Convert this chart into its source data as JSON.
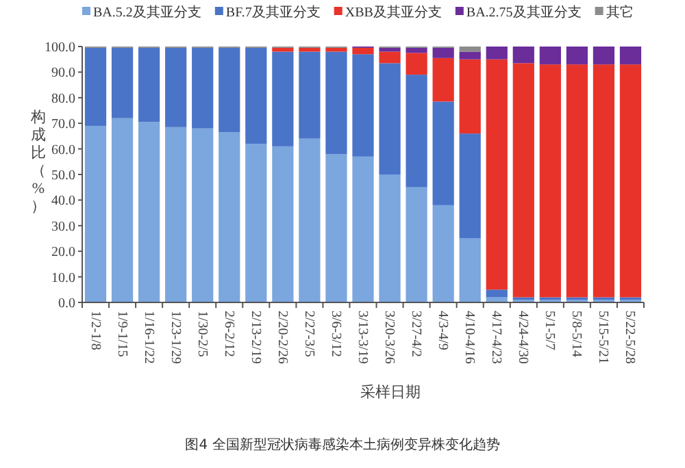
{
  "chart_data": {
    "type": "bar",
    "stacked": true,
    "legend": "top",
    "xlabel": "采样日期",
    "ylabel": "构成比（%）",
    "annotations": [
      "图4 全国新型冠状病毒感染本土病例变异株变化趋势"
    ],
    "ylim": [
      0,
      100
    ],
    "yticks": [
      {
        "value": 0,
        "label": "0.0"
      },
      {
        "value": 10,
        "label": "10.0"
      },
      {
        "value": 20,
        "label": "20.0"
      },
      {
        "value": 30,
        "label": "30.0"
      },
      {
        "value": 40,
        "label": "40.0"
      },
      {
        "value": 50,
        "label": "50.0"
      },
      {
        "value": 60,
        "label": "60.0"
      },
      {
        "value": 70,
        "label": "70.0"
      },
      {
        "value": 80,
        "label": "80.0"
      },
      {
        "value": 90,
        "label": "90.0"
      },
      {
        "value": 100,
        "label": "100.0"
      }
    ],
    "categories": [
      "1/2-1/8",
      "1/9-1/15",
      "1/16-1/22",
      "1/23-1/29",
      "1/30-2/5",
      "2/6-2/12",
      "2/13-2/19",
      "2/20-2/26",
      "2/27-3/5",
      "3/6-3/12",
      "3/13-3/19",
      "3/20-3/26",
      "3/27-4/2",
      "4/3-4/9",
      "4/10-4/16",
      "4/17-4/23",
      "4/24-4/30",
      "5/1-5/7",
      "5/8-5/14",
      "5/15-5/21",
      "5/22-5/28"
    ],
    "series": [
      {
        "name": "BA.5.2及其亚分支",
        "color": "#7ba6de",
        "values": [
          69,
          72,
          70.5,
          68.5,
          68,
          66.5,
          62,
          61,
          64,
          58,
          57,
          50,
          45,
          38,
          25,
          2,
          1,
          1,
          1,
          1,
          1
        ]
      },
      {
        "name": "BF.7及其亚分支",
        "color": "#4a74c8",
        "values": [
          30.5,
          27.5,
          29,
          31,
          31.5,
          33,
          37.5,
          37,
          34,
          40,
          40,
          43.5,
          44,
          40.5,
          41,
          3,
          1,
          1,
          1,
          1,
          1
        ]
      },
      {
        "name": "XBB及其亚分支",
        "color": "#e8332a",
        "values": [
          0,
          0,
          0,
          0,
          0,
          0,
          0,
          1.5,
          1.5,
          1.5,
          2.5,
          4.5,
          8.5,
          17,
          29,
          90,
          91.5,
          91,
          91,
          91,
          91
        ]
      },
      {
        "name": "BA.2.75及其亚分支",
        "color": "#6a2d9a",
        "values": [
          0,
          0,
          0,
          0,
          0,
          0,
          0,
          0,
          0,
          0,
          0.5,
          1.5,
          2,
          4,
          3,
          5,
          6.5,
          7,
          7,
          7,
          7
        ]
      },
      {
        "name": "其它",
        "color": "#8c8c8c",
        "values": [
          0.5,
          0.5,
          0.5,
          0.5,
          0.5,
          0.5,
          0.5,
          0.5,
          0.5,
          0.5,
          0,
          0.5,
          0.5,
          0.5,
          2,
          0,
          0,
          0,
          0,
          0,
          0
        ]
      }
    ]
  }
}
